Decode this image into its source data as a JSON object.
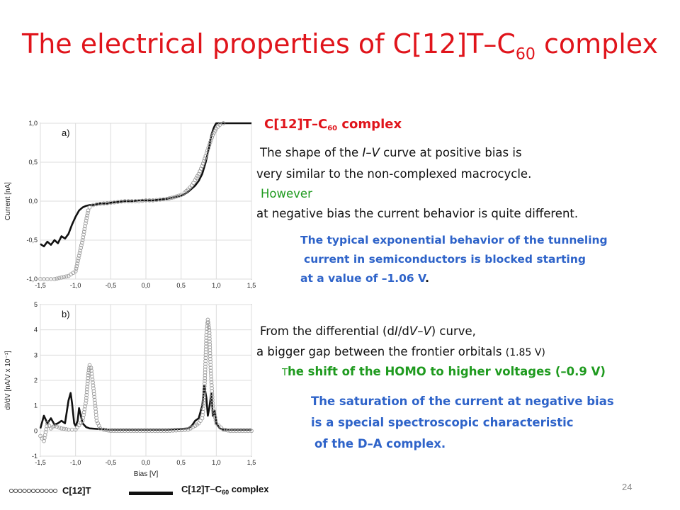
{
  "slide": {
    "title_main": "The electrical properties of C[12]T–C",
    "title_sub": "60",
    "title_tail": " complex",
    "page_number": "24"
  },
  "text": {
    "heading_main": "C[12]T–C",
    "heading_sub": "60",
    "heading_tail": " complex",
    "p1_line1_a": "The shape of the ",
    "p1_line1_iv": "I–V",
    "p1_line1_b": " curve at positive bias is",
    "p1_line2": "very similar to the non-complexed macrocycle.",
    "p1_however": "However",
    "p1_line4": "at negative bias the current behavior is quite different.",
    "b1_line1": "The typical exponential behavior of the tunneling",
    "b1_line2": "current in semiconductors is blocked starting",
    "b1_line3_a": "at a value of –1.06 V",
    "b1_line3_b": ".",
    "p2_line1_a": "From the differential (d",
    "p2_line1_i": "I",
    "p2_line1_b": "/d",
    "p2_line1_v": "V",
    "p2_line1_c": "–",
    "p2_line1_v2": "V",
    "p2_line1_d": ") curve,",
    "p2_line2_a": "a bigger gap between the frontier orbitals ",
    "p2_line2_b": "(1.85 V)",
    "g_line_a": "T",
    "g_line_b": "he shift of the HOMO to higher voltages (–0.9 V)",
    "b2_line1": "The saturation of the current at negative bias",
    "b2_line2": "is a special spectroscopic characteristic",
    "b2_line3": "of the D–A complex."
  },
  "legend": {
    "open_label": "C[12]T",
    "solid_label_main": "C[12]T–C",
    "solid_label_sub": "60",
    "solid_label_tail": " complex"
  },
  "colors": {
    "title": "#e0141b",
    "green": "#1e9a1e",
    "blue": "#2e63c9",
    "solid_series": "#111111",
    "open_series": "#9a9a9a"
  },
  "chart_data": [
    {
      "type": "line",
      "panel_label": "a)",
      "xlabel": "",
      "ylabel": "Current [nA]",
      "xlim": [
        -1.5,
        1.5
      ],
      "ylim": [
        -1.0,
        1.0
      ],
      "x_ticks": [
        "-1,5",
        "-1,0",
        "-0,5",
        "0,0",
        "0,5",
        "1,0",
        "1,5"
      ],
      "y_ticks": [
        "-1,0",
        "-0,5",
        "0,0",
        "0,5",
        "1,0"
      ],
      "grid": true,
      "series": [
        {
          "name": "C[12]T–C60 complex",
          "style": "solid",
          "x": [
            -1.5,
            -1.45,
            -1.4,
            -1.35,
            -1.3,
            -1.25,
            -1.2,
            -1.15,
            -1.1,
            -1.05,
            -1.0,
            -0.95,
            -0.9,
            -0.85,
            -0.8,
            -0.75,
            -0.7,
            -0.65,
            -0.6,
            -0.55,
            -0.5,
            -0.4,
            -0.3,
            -0.2,
            -0.1,
            0.0,
            0.1,
            0.2,
            0.3,
            0.4,
            0.5,
            0.55,
            0.6,
            0.65,
            0.7,
            0.75,
            0.8,
            0.85,
            0.9,
            0.93,
            0.96,
            0.98,
            1.0,
            1.05,
            1.1,
            1.5
          ],
          "y": [
            -0.55,
            -0.58,
            -0.52,
            -0.56,
            -0.5,
            -0.54,
            -0.45,
            -0.48,
            -0.42,
            -0.3,
            -0.2,
            -0.12,
            -0.08,
            -0.06,
            -0.05,
            -0.05,
            -0.04,
            -0.03,
            -0.03,
            -0.03,
            -0.02,
            -0.01,
            0.0,
            0.0,
            0.01,
            0.01,
            0.01,
            0.02,
            0.03,
            0.05,
            0.07,
            0.09,
            0.12,
            0.16,
            0.2,
            0.26,
            0.35,
            0.5,
            0.7,
            0.85,
            0.93,
            0.97,
            1.0,
            1.0,
            1.0,
            1.0
          ]
        },
        {
          "name": "C[12]T",
          "style": "open-circles",
          "x": [
            -1.5,
            -1.4,
            -1.3,
            -1.2,
            -1.1,
            -1.0,
            -0.95,
            -0.9,
            -0.85,
            -0.82,
            -0.8,
            -0.75,
            -0.7,
            -0.6,
            -0.5,
            -0.4,
            -0.3,
            -0.2,
            -0.1,
            0.0,
            0.1,
            0.2,
            0.3,
            0.4,
            0.5,
            0.55,
            0.6,
            0.65,
            0.7,
            0.75,
            0.8,
            0.85,
            0.9,
            0.95,
            1.0,
            1.05,
            1.1
          ],
          "y": [
            -1.0,
            -1.0,
            -1.0,
            -0.98,
            -0.96,
            -0.9,
            -0.7,
            -0.5,
            -0.25,
            -0.12,
            -0.08,
            -0.05,
            -0.04,
            -0.03,
            -0.02,
            -0.01,
            0.0,
            0.0,
            0.0,
            0.01,
            0.01,
            0.02,
            0.03,
            0.05,
            0.08,
            0.11,
            0.15,
            0.2,
            0.27,
            0.35,
            0.45,
            0.58,
            0.72,
            0.85,
            0.93,
            0.98,
            1.0
          ]
        }
      ]
    },
    {
      "type": "line",
      "panel_label": "b)",
      "xlabel": "Bias [V]",
      "ylabel": "dI/dV [nA/V x 10⁻¹]",
      "xlim": [
        -1.5,
        1.5
      ],
      "ylim": [
        -1,
        5
      ],
      "x_ticks": [
        "-1,5",
        "-1,0",
        "-0,5",
        "0,0",
        "0,5",
        "1,0",
        "1,5"
      ],
      "y_ticks": [
        "-1",
        "0",
        "1",
        "2",
        "3",
        "4",
        "5"
      ],
      "grid": true,
      "series": [
        {
          "name": "C[12]T–C60 complex",
          "style": "solid",
          "x": [
            -1.5,
            -1.45,
            -1.4,
            -1.35,
            -1.3,
            -1.25,
            -1.2,
            -1.15,
            -1.1,
            -1.07,
            -1.05,
            -1.02,
            -1.0,
            -0.97,
            -0.95,
            -0.9,
            -0.85,
            -0.8,
            -0.7,
            -0.5,
            -0.3,
            0.0,
            0.3,
            0.5,
            0.6,
            0.65,
            0.7,
            0.75,
            0.8,
            0.83,
            0.86,
            0.88,
            0.9,
            0.93,
            0.95,
            0.98,
            1.0,
            1.05,
            1.1,
            1.2,
            1.5
          ],
          "y": [
            0.1,
            0.6,
            0.3,
            0.5,
            0.25,
            0.3,
            0.4,
            0.3,
            1.2,
            1.5,
            1.1,
            0.3,
            0.2,
            0.4,
            0.9,
            0.3,
            0.15,
            0.1,
            0.08,
            0.05,
            0.05,
            0.05,
            0.05,
            0.08,
            0.1,
            0.2,
            0.4,
            0.5,
            1.0,
            1.8,
            1.3,
            0.6,
            0.9,
            1.5,
            0.6,
            0.8,
            0.3,
            0.1,
            0.05,
            0.05,
            0.05
          ]
        },
        {
          "name": "C[12]T",
          "style": "open-circles",
          "x": [
            -1.5,
            -1.45,
            -1.4,
            -1.35,
            -1.3,
            -1.2,
            -1.1,
            -1.0,
            -0.9,
            -0.85,
            -0.82,
            -0.8,
            -0.78,
            -0.75,
            -0.72,
            -0.7,
            -0.65,
            -0.6,
            -0.5,
            -0.3,
            0.0,
            0.3,
            0.6,
            0.7,
            0.75,
            0.8,
            0.82,
            0.84,
            0.86,
            0.88,
            0.9,
            0.92,
            0.95,
            1.0,
            1.1,
            1.2,
            1.5
          ],
          "y": [
            -0.2,
            -0.4,
            0.3,
            0.1,
            0.2,
            0.1,
            0.05,
            0.05,
            0.4,
            1.2,
            2.2,
            2.6,
            2.5,
            1.8,
            1.0,
            0.4,
            0.1,
            0.05,
            0.0,
            0.0,
            0.0,
            0.0,
            0.05,
            0.2,
            0.3,
            0.5,
            1.0,
            2.2,
            3.8,
            4.4,
            4.0,
            2.5,
            1.0,
            0.3,
            0.05,
            0.0,
            0.0
          ]
        }
      ]
    }
  ]
}
